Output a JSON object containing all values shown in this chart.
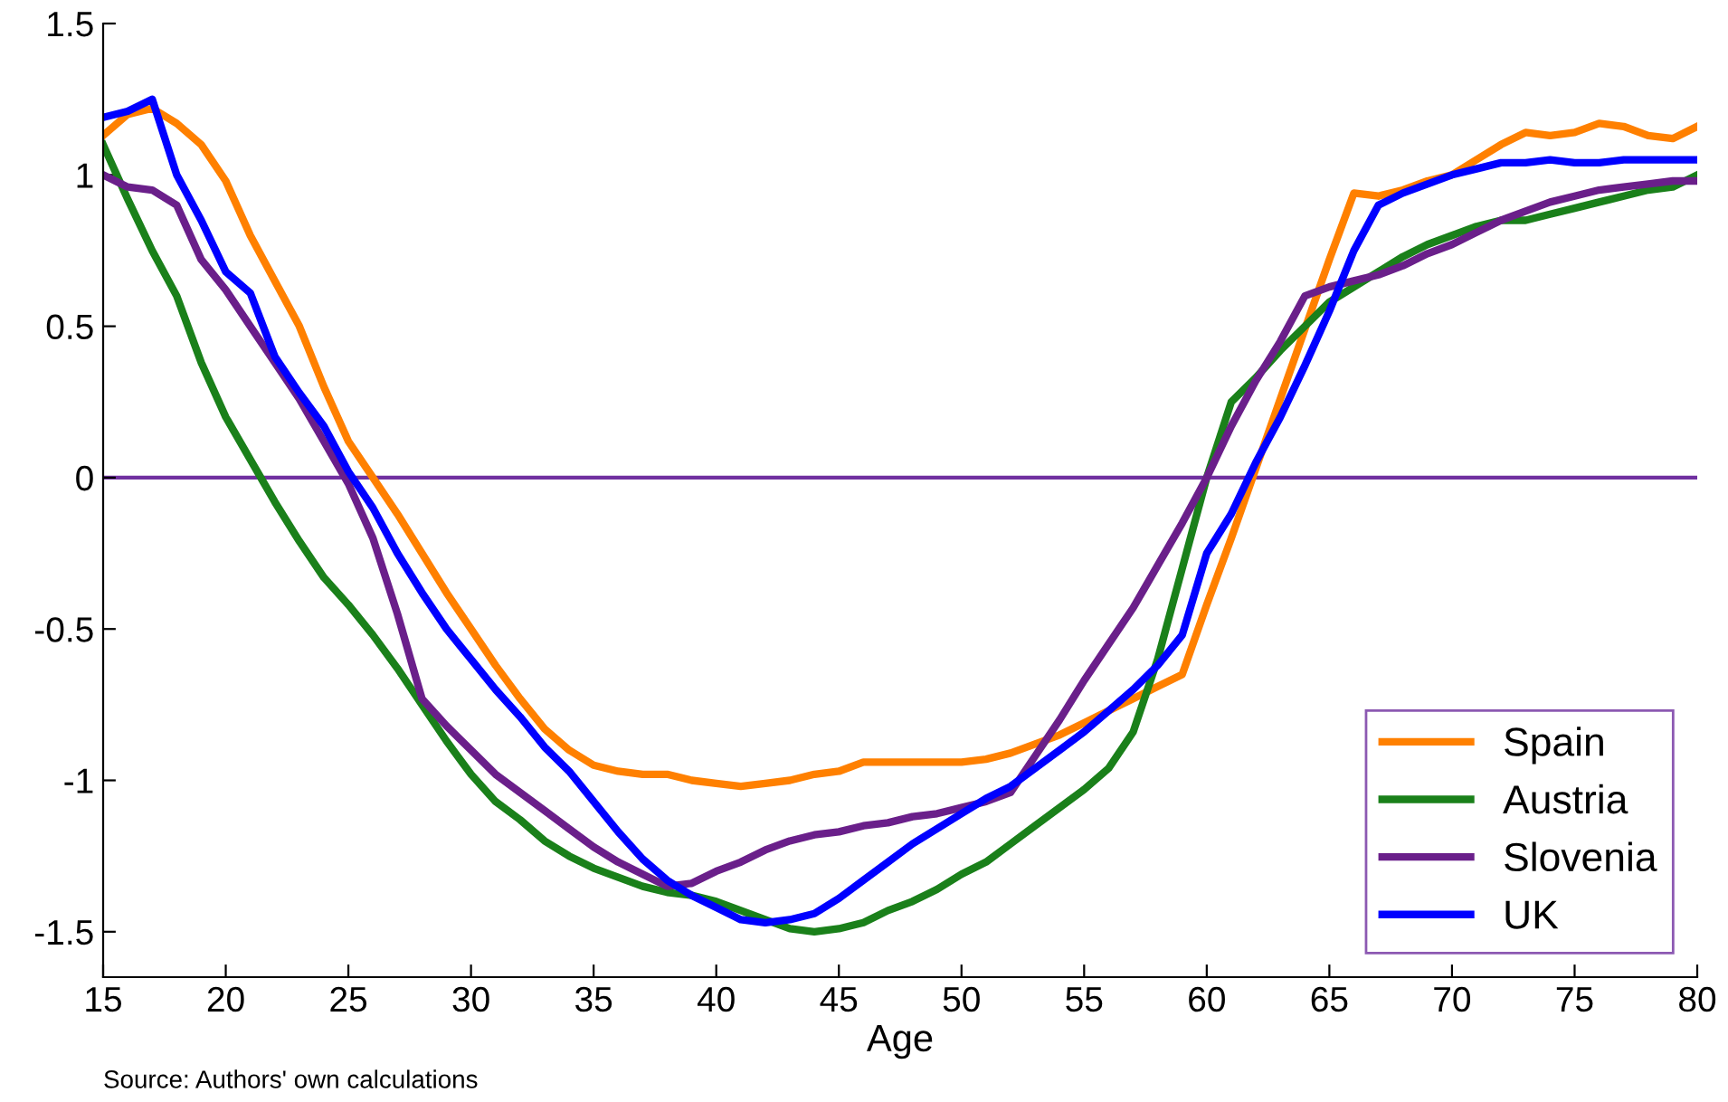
{
  "chart_data": {
    "type": "line",
    "xlabel": "Age",
    "annotations": [
      "Source: Authors' own calculations"
    ],
    "x": [
      15,
      16,
      17,
      18,
      19,
      20,
      21,
      22,
      23,
      24,
      25,
      26,
      27,
      28,
      29,
      30,
      31,
      32,
      33,
      34,
      35,
      36,
      37,
      38,
      39,
      40,
      41,
      42,
      43,
      44,
      45,
      46,
      47,
      48,
      49,
      50,
      51,
      52,
      53,
      54,
      55,
      56,
      57,
      58,
      59,
      60,
      61,
      62,
      63,
      64,
      65,
      66,
      67,
      68,
      69,
      70,
      71,
      72,
      73,
      74,
      75,
      76,
      77,
      78,
      79,
      80
    ],
    "series": [
      {
        "name": "Spain",
        "color": "#ff8000",
        "values": [
          1.13,
          1.2,
          1.22,
          1.17,
          1.1,
          0.98,
          0.8,
          0.65,
          0.5,
          0.3,
          0.12,
          0.0,
          -0.12,
          -0.25,
          -0.38,
          -0.5,
          -0.62,
          -0.73,
          -0.83,
          -0.9,
          -0.95,
          -0.97,
          -0.98,
          -0.98,
          -1.0,
          -1.01,
          -1.02,
          -1.01,
          -1.0,
          -0.98,
          -0.97,
          -0.94,
          -0.94,
          -0.94,
          -0.94,
          -0.94,
          -0.93,
          -0.91,
          -0.88,
          -0.85,
          -0.81,
          -0.77,
          -0.73,
          -0.69,
          -0.65,
          -0.42,
          -0.2,
          0.03,
          0.26,
          0.49,
          0.72,
          0.94,
          0.93,
          0.95,
          0.98,
          1.0,
          1.05,
          1.1,
          1.14,
          1.13,
          1.14,
          1.17,
          1.16,
          1.13,
          1.12,
          1.16
        ]
      },
      {
        "name": "Austria",
        "color": "#1a801a",
        "values": [
          1.1,
          0.92,
          0.75,
          0.6,
          0.38,
          0.2,
          0.06,
          -0.08,
          -0.21,
          -0.33,
          -0.42,
          -0.52,
          -0.63,
          -0.75,
          -0.87,
          -0.98,
          -1.07,
          -1.13,
          -1.2,
          -1.25,
          -1.29,
          -1.32,
          -1.35,
          -1.37,
          -1.38,
          -1.4,
          -1.43,
          -1.46,
          -1.49,
          -1.5,
          -1.49,
          -1.47,
          -1.43,
          -1.4,
          -1.36,
          -1.31,
          -1.27,
          -1.21,
          -1.15,
          -1.09,
          -1.03,
          -0.96,
          -0.84,
          -0.6,
          -0.3,
          0.0,
          0.25,
          0.33,
          0.42,
          0.5,
          0.58,
          0.63,
          0.68,
          0.73,
          0.77,
          0.8,
          0.83,
          0.85,
          0.85,
          0.87,
          0.89,
          0.91,
          0.93,
          0.95,
          0.96,
          1.0
        ]
      },
      {
        "name": "Slovenia",
        "color": "#6a1f8a",
        "values": [
          1.0,
          0.96,
          0.95,
          0.9,
          0.72,
          0.62,
          0.5,
          0.38,
          0.26,
          0.12,
          -0.02,
          -0.2,
          -0.45,
          -0.73,
          -0.82,
          -0.9,
          -0.98,
          -1.04,
          -1.1,
          -1.16,
          -1.22,
          -1.27,
          -1.31,
          -1.35,
          -1.34,
          -1.3,
          -1.27,
          -1.23,
          -1.2,
          -1.18,
          -1.17,
          -1.15,
          -1.14,
          -1.12,
          -1.11,
          -1.09,
          -1.07,
          -1.04,
          -0.92,
          -0.8,
          -0.67,
          -0.55,
          -0.43,
          -0.29,
          -0.15,
          0.0,
          0.17,
          0.32,
          0.45,
          0.6,
          0.63,
          0.65,
          0.67,
          0.7,
          0.74,
          0.77,
          0.81,
          0.85,
          0.88,
          0.91,
          0.93,
          0.95,
          0.96,
          0.97,
          0.98,
          0.98
        ]
      },
      {
        "name": "UK",
        "color": "#0000ff",
        "values": [
          1.19,
          1.21,
          1.25,
          1.0,
          0.85,
          0.68,
          0.61,
          0.4,
          0.28,
          0.17,
          0.02,
          -0.1,
          -0.25,
          -0.38,
          -0.5,
          -0.6,
          -0.7,
          -0.79,
          -0.89,
          -0.97,
          -1.07,
          -1.17,
          -1.26,
          -1.33,
          -1.38,
          -1.42,
          -1.46,
          -1.47,
          -1.46,
          -1.44,
          -1.39,
          -1.33,
          -1.27,
          -1.21,
          -1.16,
          -1.11,
          -1.06,
          -1.02,
          -0.96,
          -0.9,
          -0.84,
          -0.77,
          -0.7,
          -0.62,
          -0.52,
          -0.25,
          -0.12,
          0.05,
          0.2,
          0.37,
          0.55,
          0.75,
          0.9,
          0.94,
          0.97,
          1.0,
          1.02,
          1.04,
          1.04,
          1.05,
          1.04,
          1.04,
          1.05,
          1.05,
          1.05,
          1.05
        ]
      }
    ],
    "xlim": [
      15,
      80
    ],
    "xticks": [
      15,
      20,
      25,
      30,
      35,
      40,
      45,
      50,
      55,
      60,
      65,
      70,
      75,
      80
    ],
    "ylim": [
      -1.65,
      1.5
    ],
    "yticks": [
      -1.5,
      -1,
      -0.5,
      0,
      0.5,
      1,
      1.5
    ],
    "ref_lines": [
      {
        "axis": "y",
        "value": 0,
        "color": "#7030a0"
      }
    ],
    "legend": "bottom right",
    "grid": false,
    "marker": "none",
    "line_style": "solid"
  }
}
